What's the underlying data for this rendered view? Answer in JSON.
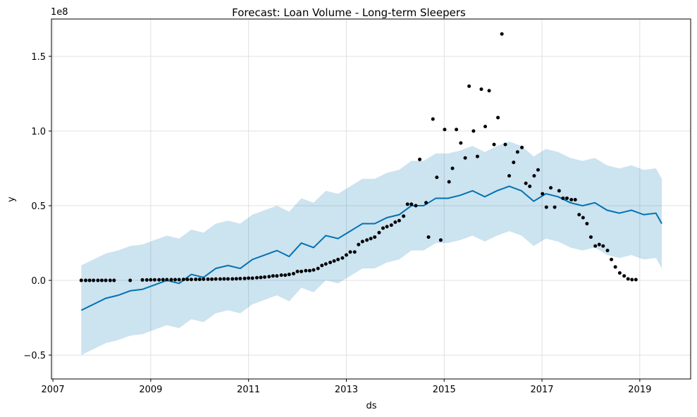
{
  "chart_data": {
    "type": "forecast",
    "title": "Forecast: Loan Volume - Long-term Sleepers",
    "x_label": "ds",
    "y_label": "y",
    "y_offset_label": "1e8",
    "xlim": [
      2006.97,
      2020.04
    ],
    "xticks": [
      2007,
      2009,
      2011,
      2013,
      2015,
      2017,
      2019
    ],
    "ylim": [
      -0.66,
      1.75
    ],
    "yticks": [
      {
        "value": -0.5,
        "label": "−0.5"
      },
      {
        "value": 0,
        "label": "0.0"
      },
      0.5,
      {
        "value": 1,
        "label": "1.0"
      },
      1.5
    ],
    "grid": true,
    "forecast": {
      "color": "#0072b2",
      "band_color": "#0072b2",
      "x": [
        2007.58,
        2007.83,
        2008.08,
        2008.33,
        2008.58,
        2008.83,
        2009.08,
        2009.33,
        2009.58,
        2009.83,
        2010.08,
        2010.33,
        2010.58,
        2010.83,
        2011.08,
        2011.33,
        2011.58,
        2011.83,
        2012.08,
        2012.33,
        2012.58,
        2012.83,
        2013.08,
        2013.33,
        2013.58,
        2013.83,
        2014.08,
        2014.33,
        2014.58,
        2014.83,
        2015.08,
        2015.33,
        2015.58,
        2015.83,
        2016.08,
        2016.33,
        2016.58,
        2016.83,
        2017.08,
        2017.33,
        2017.58,
        2017.83,
        2018.08,
        2018.33,
        2018.58,
        2018.83,
        2019.08,
        2019.33,
        2019.45
      ],
      "values": [
        -0.2,
        -0.16,
        -0.12,
        -0.1,
        -0.07,
        -0.06,
        -0.03,
        0.0,
        -0.02,
        0.04,
        0.02,
        0.08,
        0.1,
        0.08,
        0.14,
        0.17,
        0.2,
        0.16,
        0.25,
        0.22,
        0.3,
        0.28,
        0.33,
        0.38,
        0.38,
        0.42,
        0.44,
        0.5,
        0.5,
        0.55,
        0.55,
        0.57,
        0.6,
        0.56,
        0.6,
        0.63,
        0.6,
        0.53,
        0.58,
        0.56,
        0.52,
        0.5,
        0.52,
        0.47,
        0.45,
        0.47,
        0.44,
        0.45,
        0.38
      ],
      "upper": [
        0.1,
        0.14,
        0.18,
        0.2,
        0.23,
        0.24,
        0.27,
        0.3,
        0.28,
        0.34,
        0.32,
        0.38,
        0.4,
        0.38,
        0.44,
        0.47,
        0.5,
        0.46,
        0.55,
        0.52,
        0.6,
        0.58,
        0.63,
        0.68,
        0.68,
        0.72,
        0.74,
        0.8,
        0.8,
        0.85,
        0.85,
        0.87,
        0.9,
        0.86,
        0.9,
        0.93,
        0.9,
        0.83,
        0.88,
        0.86,
        0.82,
        0.8,
        0.82,
        0.77,
        0.75,
        0.77,
        0.74,
        0.75,
        0.68
      ],
      "lower": [
        -0.5,
        -0.46,
        -0.42,
        -0.4,
        -0.37,
        -0.36,
        -0.33,
        -0.3,
        -0.32,
        -0.26,
        -0.28,
        -0.22,
        -0.2,
        -0.22,
        -0.16,
        -0.13,
        -0.1,
        -0.14,
        -0.05,
        -0.08,
        0.0,
        -0.02,
        0.03,
        0.08,
        0.08,
        0.12,
        0.14,
        0.2,
        0.2,
        0.25,
        0.25,
        0.27,
        0.3,
        0.26,
        0.3,
        0.33,
        0.3,
        0.23,
        0.28,
        0.26,
        0.22,
        0.2,
        0.22,
        0.17,
        0.15,
        0.17,
        0.14,
        0.15,
        0.08
      ]
    },
    "actuals": {
      "color": "#000000",
      "x": [
        2007.58,
        2007.67,
        2007.75,
        2007.83,
        2007.92,
        2008.0,
        2008.08,
        2008.17,
        2008.25,
        2008.58,
        2008.83,
        2008.92,
        2009.0,
        2009.08,
        2009.17,
        2009.25,
        2009.33,
        2009.42,
        2009.5,
        2009.58,
        2009.67,
        2009.75,
        2009.83,
        2009.92,
        2010.0,
        2010.08,
        2010.17,
        2010.25,
        2010.33,
        2010.42,
        2010.5,
        2010.58,
        2010.67,
        2010.75,
        2010.83,
        2010.92,
        2011.0,
        2011.08,
        2011.17,
        2011.25,
        2011.33,
        2011.42,
        2011.5,
        2011.58,
        2011.67,
        2011.75,
        2011.83,
        2011.92,
        2012.0,
        2012.08,
        2012.17,
        2012.25,
        2012.33,
        2012.42,
        2012.5,
        2012.58,
        2012.67,
        2012.75,
        2012.83,
        2012.92,
        2013.0,
        2013.08,
        2013.17,
        2013.25,
        2013.33,
        2013.42,
        2013.5,
        2013.58,
        2013.67,
        2013.75,
        2013.83,
        2013.92,
        2014.0,
        2014.08,
        2014.17,
        2014.25,
        2014.33,
        2014.42,
        2014.5,
        2014.63,
        2014.68,
        2014.77,
        2014.85,
        2014.93,
        2015.01,
        2015.1,
        2015.17,
        2015.25,
        2015.34,
        2015.43,
        2015.51,
        2015.6,
        2015.68,
        2015.76,
        2015.84,
        2015.92,
        2016.02,
        2016.1,
        2016.18,
        2016.25,
        2016.33,
        2016.42,
        2016.5,
        2016.59,
        2016.67,
        2016.75,
        2016.84,
        2016.92,
        2017.01,
        2017.09,
        2017.18,
        2017.26,
        2017.35,
        2017.43,
        2017.51,
        2017.6,
        2017.68,
        2017.76,
        2017.84,
        2017.92,
        2018.0,
        2018.09,
        2018.17,
        2018.25,
        2018.34,
        2018.42,
        2018.5,
        2018.59,
        2018.68,
        2018.76,
        2018.84,
        2018.92
      ],
      "values": [
        0,
        0,
        0,
        0,
        0,
        0,
        0,
        0,
        0,
        0,
        0.003,
        0.003,
        0.004,
        0.004,
        0.004,
        0.005,
        0.005,
        0.005,
        0.005,
        0.005,
        0.006,
        0.006,
        0.006,
        0.007,
        0.007,
        0.008,
        0.008,
        0.008,
        0.009,
        0.009,
        0.01,
        0.01,
        0.01,
        0.011,
        0.012,
        0.013,
        0.015,
        0.015,
        0.018,
        0.02,
        0.022,
        0.025,
        0.03,
        0.03,
        0.035,
        0.035,
        0.04,
        0.045,
        0.06,
        0.06,
        0.065,
        0.065,
        0.07,
        0.08,
        0.1,
        0.11,
        0.12,
        0.13,
        0.14,
        0.15,
        0.17,
        0.19,
        0.19,
        0.24,
        0.26,
        0.27,
        0.28,
        0.29,
        0.32,
        0.35,
        0.36,
        0.37,
        0.39,
        0.4,
        0.43,
        0.51,
        0.51,
        0.5,
        0.81,
        0.52,
        0.29,
        1.08,
        0.69,
        0.27,
        1.01,
        0.66,
        0.75,
        1.01,
        0.92,
        0.82,
        1.3,
        1.0,
        0.83,
        1.28,
        1.03,
        1.27,
        0.91,
        1.09,
        1.65,
        0.91,
        0.7,
        0.79,
        0.86,
        0.89,
        0.65,
        0.63,
        0.7,
        0.74,
        0.58,
        0.49,
        0.62,
        0.49,
        0.6,
        0.55,
        0.55,
        0.54,
        0.54,
        0.44,
        0.42,
        0.38,
        0.29,
        0.23,
        0.24,
        0.23,
        0.2,
        0.14,
        0.09,
        0.05,
        0.03,
        0.01,
        0.005,
        0.005
      ]
    }
  }
}
